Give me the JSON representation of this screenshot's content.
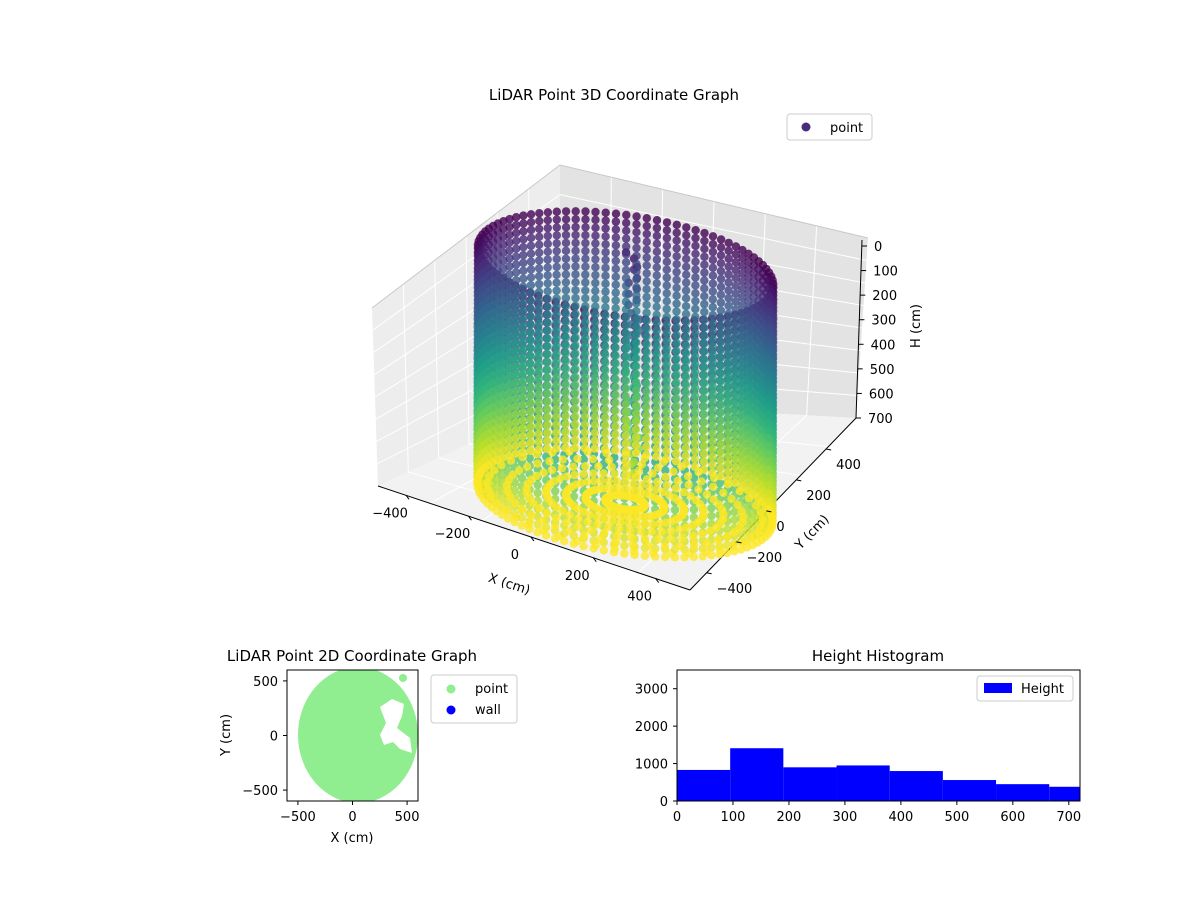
{
  "chart_data": [
    {
      "type": "scatter",
      "projection": "3d",
      "title": "LiDAR Point 3D Coordinate Graph",
      "xlabel": "X (cm)",
      "ylabel": "Y (cm)",
      "zlabel": "H (cm)",
      "xticks": [
        "−400",
        "−200",
        "0",
        "200",
        "400"
      ],
      "yticks": [
        "400",
        "200",
        "0",
        "−200",
        "−400"
      ],
      "zticks": [
        "0",
        "100",
        "200",
        "300",
        "400",
        "500",
        "600",
        "700"
      ],
      "xlim": [
        -550,
        550
      ],
      "ylim": [
        -550,
        550
      ],
      "zlim": [
        0,
        700
      ],
      "z_inverted": true,
      "grid": true,
      "colormap": "viridis",
      "legend": {
        "placement": "top-right",
        "entries": [
          {
            "label": "point",
            "color": "#472d7b"
          }
        ]
      },
      "description_series": {
        "name": "point",
        "shape": "cylindrical wall",
        "radius_cm": 450,
        "height_range_cm": [
          0,
          720
        ]
      }
    },
    {
      "type": "scatter",
      "title": "LiDAR Point 2D Coordinate Graph",
      "xlabel": "X (cm)",
      "ylabel": "Y (cm)",
      "xticks": [
        "−500",
        "0",
        "500"
      ],
      "yticks": [
        "500",
        "0",
        "−500"
      ],
      "xlim": [
        -600,
        600
      ],
      "ylim": [
        -600,
        600
      ],
      "legend": {
        "placement": "outside right",
        "entries": [
          {
            "label": "point",
            "color": "#90ee90"
          },
          {
            "label": "wall",
            "color": "#0000ff"
          }
        ]
      },
      "description_series": {
        "name": "point",
        "shape": "filled disk",
        "center": [
          0,
          0
        ],
        "radius_cm": 600
      }
    },
    {
      "type": "bar",
      "subtype": "histogram",
      "title": "Height Histogram",
      "xticks": [
        "0",
        "100",
        "200",
        "300",
        "400",
        "500",
        "600",
        "700"
      ],
      "yticks": [
        "0",
        "1000",
        "2000",
        "3000"
      ],
      "xlim": [
        0,
        720
      ],
      "ylim": [
        0,
        3500
      ],
      "color": "#0000ff",
      "legend": {
        "placement": "top-right",
        "entries": [
          {
            "label": "Height",
            "color": "#0000ff"
          }
        ]
      },
      "bin_edges": [
        0,
        95,
        190,
        285,
        380,
        475,
        570,
        665,
        760
      ],
      "values": [
        830,
        1410,
        900,
        950,
        800,
        560,
        450,
        380
      ]
    }
  ]
}
